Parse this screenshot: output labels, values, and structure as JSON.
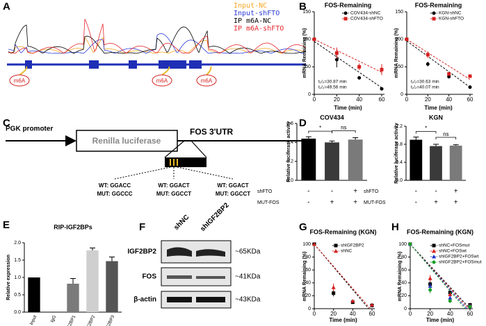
{
  "figure": {
    "panel_labels": [
      "A",
      "B",
      "C",
      "D",
      "E",
      "F",
      "G",
      "H"
    ],
    "tracks": {
      "legend": [
        {
          "name": "Input-NC",
          "color": "#f5a623"
        },
        {
          "name": "Input-shFTO",
          "color": "#2b3bd6"
        },
        {
          "name": "IP m6A-NC",
          "color": "#000000"
        },
        {
          "name": "IP m6A-shFTO",
          "color": "#e8272b"
        }
      ],
      "sites": [
        "m6A",
        "m6A",
        "m6A"
      ]
    },
    "construct": {
      "promoter": "PGK promoter",
      "reporter": "Renilla luciferase",
      "utr": "FOS 3'UTR",
      "motifs": [
        {
          "wt": "WT: GGACC",
          "mut": "MUT: GGCCC"
        },
        {
          "wt": "WT: GGACT",
          "mut": "MUT: GGCCT"
        },
        {
          "wt": "WT: GGACT",
          "mut": "MUT: GGCCT"
        }
      ]
    },
    "blot": {
      "lanes": [
        "shNC",
        "shIGF2BP2"
      ],
      "rows": [
        {
          "protein": "IGF2BP2",
          "size": "~65KDa"
        },
        {
          "protein": "FOS",
          "size": "~41KDa"
        },
        {
          "protein": "β-actin",
          "size": "~43KDa"
        }
      ]
    }
  },
  "chart_data": [
    {
      "type": "line",
      "title": "FOS-Remaining",
      "xlabel": "Time (min)",
      "ylabel": "mRNA Remaining (%)",
      "x": [
        0,
        20,
        40,
        60
      ],
      "xlim": [
        0,
        60
      ],
      "xticks": [
        0,
        20,
        40,
        60
      ],
      "ylim": [
        0,
        150
      ],
      "yticks": [
        0,
        50,
        100,
        150
      ],
      "legend": "upper right",
      "fit_x": [
        0,
        60
      ],
      "series": [
        {
          "name": "COV434-shNC",
          "color": "#000000",
          "marker": "circle",
          "values": [
            100,
            63,
            30,
            10
          ],
          "errors": [
            0,
            14,
            3,
            2
          ],
          "fit_y": [
            96,
            12
          ]
        },
        {
          "name": "COV434-shFTO",
          "color": "#d62020",
          "marker": "square",
          "values": [
            100,
            75,
            50,
            45
          ],
          "errors": [
            0,
            10,
            6,
            10
          ],
          "fit_y": [
            100,
            40
          ]
        }
      ],
      "annotations": [
        "t₁/₂=30.87 min",
        "t₁/₂=49.56 min"
      ]
    },
    {
      "type": "line",
      "title": "FOS-Remaining",
      "xlabel": "Time (min)",
      "ylabel": "mRNA Remaining (%)",
      "x": [
        0,
        20,
        40,
        60
      ],
      "xlim": [
        0,
        60
      ],
      "xticks": [
        0,
        20,
        40,
        60
      ],
      "ylim": [
        0,
        150
      ],
      "yticks": [
        0,
        50,
        100,
        150
      ],
      "legend": "upper right",
      "fit_x": [
        0,
        60
      ],
      "series": [
        {
          "name": "KGN-shNC",
          "color": "#000000",
          "marker": "circle",
          "values": [
            100,
            55,
            32,
            13
          ],
          "errors": [
            0,
            4,
            3,
            2
          ],
          "fit_y": [
            97,
            13
          ]
        },
        {
          "name": "KGN-shFTO",
          "color": "#d62020",
          "marker": "square",
          "values": [
            100,
            72,
            37,
            33
          ],
          "errors": [
            0,
            6,
            3,
            2
          ],
          "fit_y": [
            100,
            27
          ]
        }
      ],
      "annotations": [
        "t₁/₂=30.63 min",
        "t₁/₂=40.07 min"
      ]
    },
    {
      "type": "bar",
      "title": "COV434",
      "ylabel": "Relative luciferase activity",
      "categories": [
        null,
        null,
        null
      ],
      "values": [
        0.44,
        0.4,
        0.43
      ],
      "errors": [
        0.02,
        0.015,
        0.02
      ],
      "colors": [
        "#000000",
        "#3a3a3a",
        "#7a7a7a"
      ],
      "ylim": [
        0,
        0.6
      ],
      "yticks": [
        {
          "value": 0,
          "label": "0.0"
        },
        0.2,
        0.4,
        0.6
      ],
      "conditions": [
        {
          "label": "shFTO",
          "marks": [
            "-",
            "-",
            "+"
          ]
        },
        {
          "label": "MUT-FOS",
          "marks": [
            "-",
            "+",
            "+"
          ]
        }
      ],
      "significance": [
        {
          "pair": [
            0,
            1
          ],
          "label": "*"
        },
        {
          "pair": [
            1,
            2
          ],
          "label": "ns"
        }
      ]
    },
    {
      "type": "bar",
      "title": "KGN",
      "ylabel": "Relative luciferase activity",
      "categories": [
        null,
        null,
        null
      ],
      "values": [
        0.9,
        0.76,
        0.77
      ],
      "errors": [
        0.06,
        0.04,
        0.02
      ],
      "colors": [
        "#000000",
        "#3a3a3a",
        "#7a7a7a"
      ],
      "ylim": [
        0,
        1.2
      ],
      "yticks": [
        {
          "value": 0,
          "label": "0.0"
        },
        0.4,
        0.8,
        1.2
      ],
      "conditions": [
        {
          "label": "shFTO",
          "marks": [
            "-",
            "-",
            "+"
          ]
        },
        {
          "label": "MUT-FOS",
          "marks": [
            "-",
            "+",
            "+"
          ]
        }
      ],
      "significance": [
        {
          "pair": [
            0,
            1
          ],
          "label": "*"
        },
        {
          "pair": [
            1,
            2
          ],
          "label": "ns"
        }
      ]
    },
    {
      "type": "bar",
      "title": "RIP-IGF2BPs",
      "ylabel": "Relative expression",
      "categories": [
        "Input",
        "IgG",
        "IGF2BP1",
        "IGF2BP2",
        "IGF2BP3"
      ],
      "values": [
        1.0,
        0,
        0.82,
        1.78,
        1.47
      ],
      "errors": [
        0,
        0,
        0.15,
        0.07,
        0.12
      ],
      "colors": [
        "#000000",
        "#000000",
        "#7a7a7a",
        "#cfcfcf",
        "#555555"
      ],
      "ylim": [
        0,
        2
      ],
      "yticks": [
        {
          "value": 0,
          "label": "0.0"
        },
        0.5,
        {
          "value": 1,
          "label": "1.0"
        },
        1.5,
        {
          "value": 2,
          "label": "2.0"
        }
      ]
    },
    {
      "type": "line",
      "title": "FOS-Remaining (KGN)",
      "xlabel": "Time (min)",
      "ylabel": "mRNA Remaining (%)",
      "x": [
        0,
        20,
        40,
        60
      ],
      "xlim": [
        0,
        60
      ],
      "xticks": [
        0,
        20,
        40,
        60
      ],
      "ylim": [
        0,
        100
      ],
      "yticks": [
        0,
        20,
        40,
        60,
        80,
        100
      ],
      "legend": "upper right",
      "fit_x": [
        0,
        60
      ],
      "series": [
        {
          "name": "shIGF2BP2",
          "color": "#000000",
          "marker": "square",
          "values": [
            100,
            24,
            10,
            5
          ],
          "errors": [
            0,
            5,
            2,
            1
          ],
          "fit_y": [
            100,
            -6
          ]
        },
        {
          "name": "shNC",
          "color": "#d62020",
          "marker": "triangle",
          "values": [
            100,
            33,
            12,
            6
          ],
          "errors": [
            0,
            6,
            2,
            2
          ],
          "fit_y": [
            100,
            -3
          ]
        }
      ]
    },
    {
      "type": "line",
      "title": "FOS-Remaining (KGN)",
      "xlabel": "Time (min)",
      "ylabel": "mRNA Remaining (%)",
      "x": [
        0,
        20,
        40,
        60
      ],
      "xlim": [
        0,
        60
      ],
      "xticks": [
        0,
        20,
        40,
        60
      ],
      "ylim": [
        0,
        100
      ],
      "yticks": [
        0,
        20,
        40,
        60,
        80,
        100
      ],
      "legend": "upper right",
      "fit_x": [
        0,
        60
      ],
      "series": [
        {
          "name": "shNC+FOSmut",
          "color": "#000000",
          "marker": "square",
          "values": [
            100,
            38,
            25,
            6
          ],
          "errors": [
            0,
            4,
            3,
            1
          ],
          "fit_y": [
            100,
            0
          ]
        },
        {
          "name": "shNC+FOSwt",
          "color": "#d62020",
          "marker": "triangle",
          "values": [
            100,
            47,
            22,
            5
          ],
          "errors": [
            0,
            5,
            3,
            1
          ],
          "fit_y": [
            100,
            -3
          ]
        },
        {
          "name": "shIGF2BP2+FOSwt",
          "color": "#2233cc",
          "marker": "triangle",
          "values": [
            100,
            35,
            17,
            4
          ],
          "errors": [
            0,
            5,
            3,
            1
          ],
          "fit_y": [
            100,
            -6
          ]
        },
        {
          "name": "shIGF2BP2+FOSmut",
          "color": "#1a9e2a",
          "marker": "circle",
          "values": [
            100,
            29,
            12,
            3
          ],
          "errors": [
            0,
            5,
            3,
            1
          ],
          "fit_y": [
            100,
            -9
          ]
        }
      ]
    }
  ]
}
